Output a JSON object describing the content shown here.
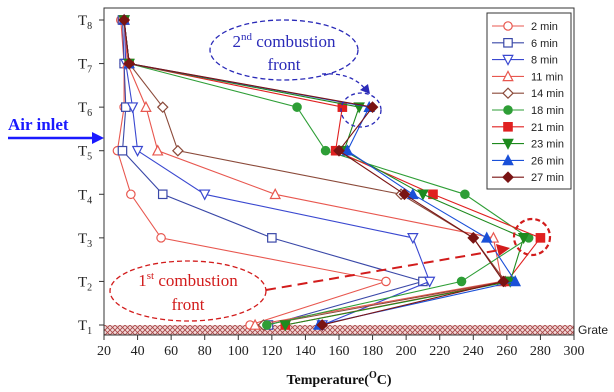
{
  "chart_data": {
    "type": "line",
    "title": "",
    "xlabel": "Temperature(°C)",
    "xlabel_main": "Temperature(",
    "xlabel_sup": "O",
    "xlabel_tail": "C)",
    "ylabel": "",
    "xlim": [
      20,
      300
    ],
    "ylim": [
      1,
      8
    ],
    "x_ticks": [
      20,
      40,
      60,
      80,
      100,
      120,
      140,
      160,
      180,
      200,
      220,
      240,
      260,
      280,
      300
    ],
    "y_ticks": [
      {
        "value": 1,
        "base": "T",
        "sub": "1"
      },
      {
        "value": 2,
        "base": "T",
        "sub": "2"
      },
      {
        "value": 3,
        "base": "T",
        "sub": "3"
      },
      {
        "value": 4,
        "base": "T",
        "sub": "4"
      },
      {
        "value": 5,
        "base": "T",
        "sub": "5"
      },
      {
        "value": 6,
        "base": "T",
        "sub": "6"
      },
      {
        "value": 7,
        "base": "T",
        "sub": "7"
      },
      {
        "value": 8,
        "base": "T",
        "sub": "8"
      }
    ],
    "grid": false,
    "legend_position": "top-right",
    "series": [
      {
        "name": "2 min",
        "color": "#e8574f",
        "marker": "circle",
        "filled": false,
        "points": [
          [
            30,
            8
          ],
          [
            32,
            7
          ],
          [
            32,
            6
          ],
          [
            28,
            5
          ],
          [
            36,
            4
          ],
          [
            54,
            3
          ],
          [
            188,
            2
          ],
          [
            107,
            1
          ]
        ]
      },
      {
        "name": "6 min",
        "color": "#3a48a8",
        "marker": "square",
        "filled": false,
        "points": [
          [
            31,
            8
          ],
          [
            32,
            7
          ],
          [
            33,
            6
          ],
          [
            31,
            5
          ],
          [
            55,
            4
          ],
          [
            120,
            3
          ],
          [
            210,
            2
          ],
          [
            118,
            1
          ]
        ]
      },
      {
        "name": "8 min",
        "color": "#3a48d0",
        "marker": "triangle-down",
        "filled": false,
        "points": [
          [
            32,
            8
          ],
          [
            33,
            7
          ],
          [
            37,
            6
          ],
          [
            40,
            5
          ],
          [
            80,
            4
          ],
          [
            204,
            3
          ],
          [
            214,
            2
          ],
          [
            150,
            1
          ]
        ]
      },
      {
        "name": "11 min",
        "color": "#e8574f",
        "marker": "triangle-up",
        "filled": false,
        "points": [
          [
            32,
            8
          ],
          [
            34,
            7
          ],
          [
            45,
            6
          ],
          [
            52,
            5
          ],
          [
            122,
            4
          ],
          [
            252,
            3
          ],
          [
            257,
            2
          ],
          [
            110,
            1
          ]
        ]
      },
      {
        "name": "14 min",
        "color": "#8b4a3a",
        "marker": "diamond",
        "filled": false,
        "points": [
          [
            32,
            8
          ],
          [
            35,
            7
          ],
          [
            55,
            6
          ],
          [
            64,
            5
          ],
          [
            197,
            4
          ],
          [
            240,
            3
          ],
          [
            259,
            2
          ],
          [
            115,
            1
          ]
        ]
      },
      {
        "name": "18 min",
        "color": "#2e9e36",
        "marker": "circle",
        "filled": true,
        "points": [
          [
            32,
            8
          ],
          [
            35,
            7
          ],
          [
            135,
            6
          ],
          [
            152,
            5
          ],
          [
            235,
            4
          ],
          [
            273,
            3
          ],
          [
            233,
            2
          ],
          [
            117,
            1
          ]
        ]
      },
      {
        "name": "21 min",
        "color": "#e02020",
        "marker": "square",
        "filled": true,
        "points": [
          [
            32,
            8
          ],
          [
            35,
            7
          ],
          [
            162,
            6
          ],
          [
            158,
            5
          ],
          [
            216,
            4
          ],
          [
            280,
            3
          ],
          [
            260,
            2
          ],
          [
            128,
            1
          ]
        ]
      },
      {
        "name": "23 min",
        "color": "#1e8a1e",
        "marker": "triangle-down",
        "filled": true,
        "points": [
          [
            32,
            8
          ],
          [
            35,
            7
          ],
          [
            172,
            6
          ],
          [
            163,
            5
          ],
          [
            210,
            4
          ],
          [
            270,
            3
          ],
          [
            262,
            2
          ],
          [
            128,
            1
          ]
        ]
      },
      {
        "name": "26 min",
        "color": "#1a50d8",
        "marker": "triangle-up",
        "filled": true,
        "points": [
          [
            32,
            8
          ],
          [
            35,
            7
          ],
          [
            178,
            6
          ],
          [
            165,
            5
          ],
          [
            204,
            4
          ],
          [
            248,
            3
          ],
          [
            265,
            2
          ],
          [
            148,
            1
          ]
        ]
      },
      {
        "name": "27 min",
        "color": "#7a1414",
        "marker": "diamond",
        "filled": true,
        "points": [
          [
            32,
            8
          ],
          [
            35,
            7
          ],
          [
            180,
            6
          ],
          [
            160,
            5
          ],
          [
            199,
            4
          ],
          [
            240,
            3
          ],
          [
            258,
            2
          ],
          [
            150,
            1
          ]
        ]
      }
    ],
    "annotations": {
      "first_front": {
        "line1": "1",
        "sup": "st",
        "line1_tail": " combustion",
        "line2": "front"
      },
      "second_front": {
        "line1": "2",
        "sup": "nd",
        "line1_tail": " combustion",
        "line2": "front"
      },
      "air_inlet": "Air inlet",
      "grate": "Grate"
    }
  }
}
